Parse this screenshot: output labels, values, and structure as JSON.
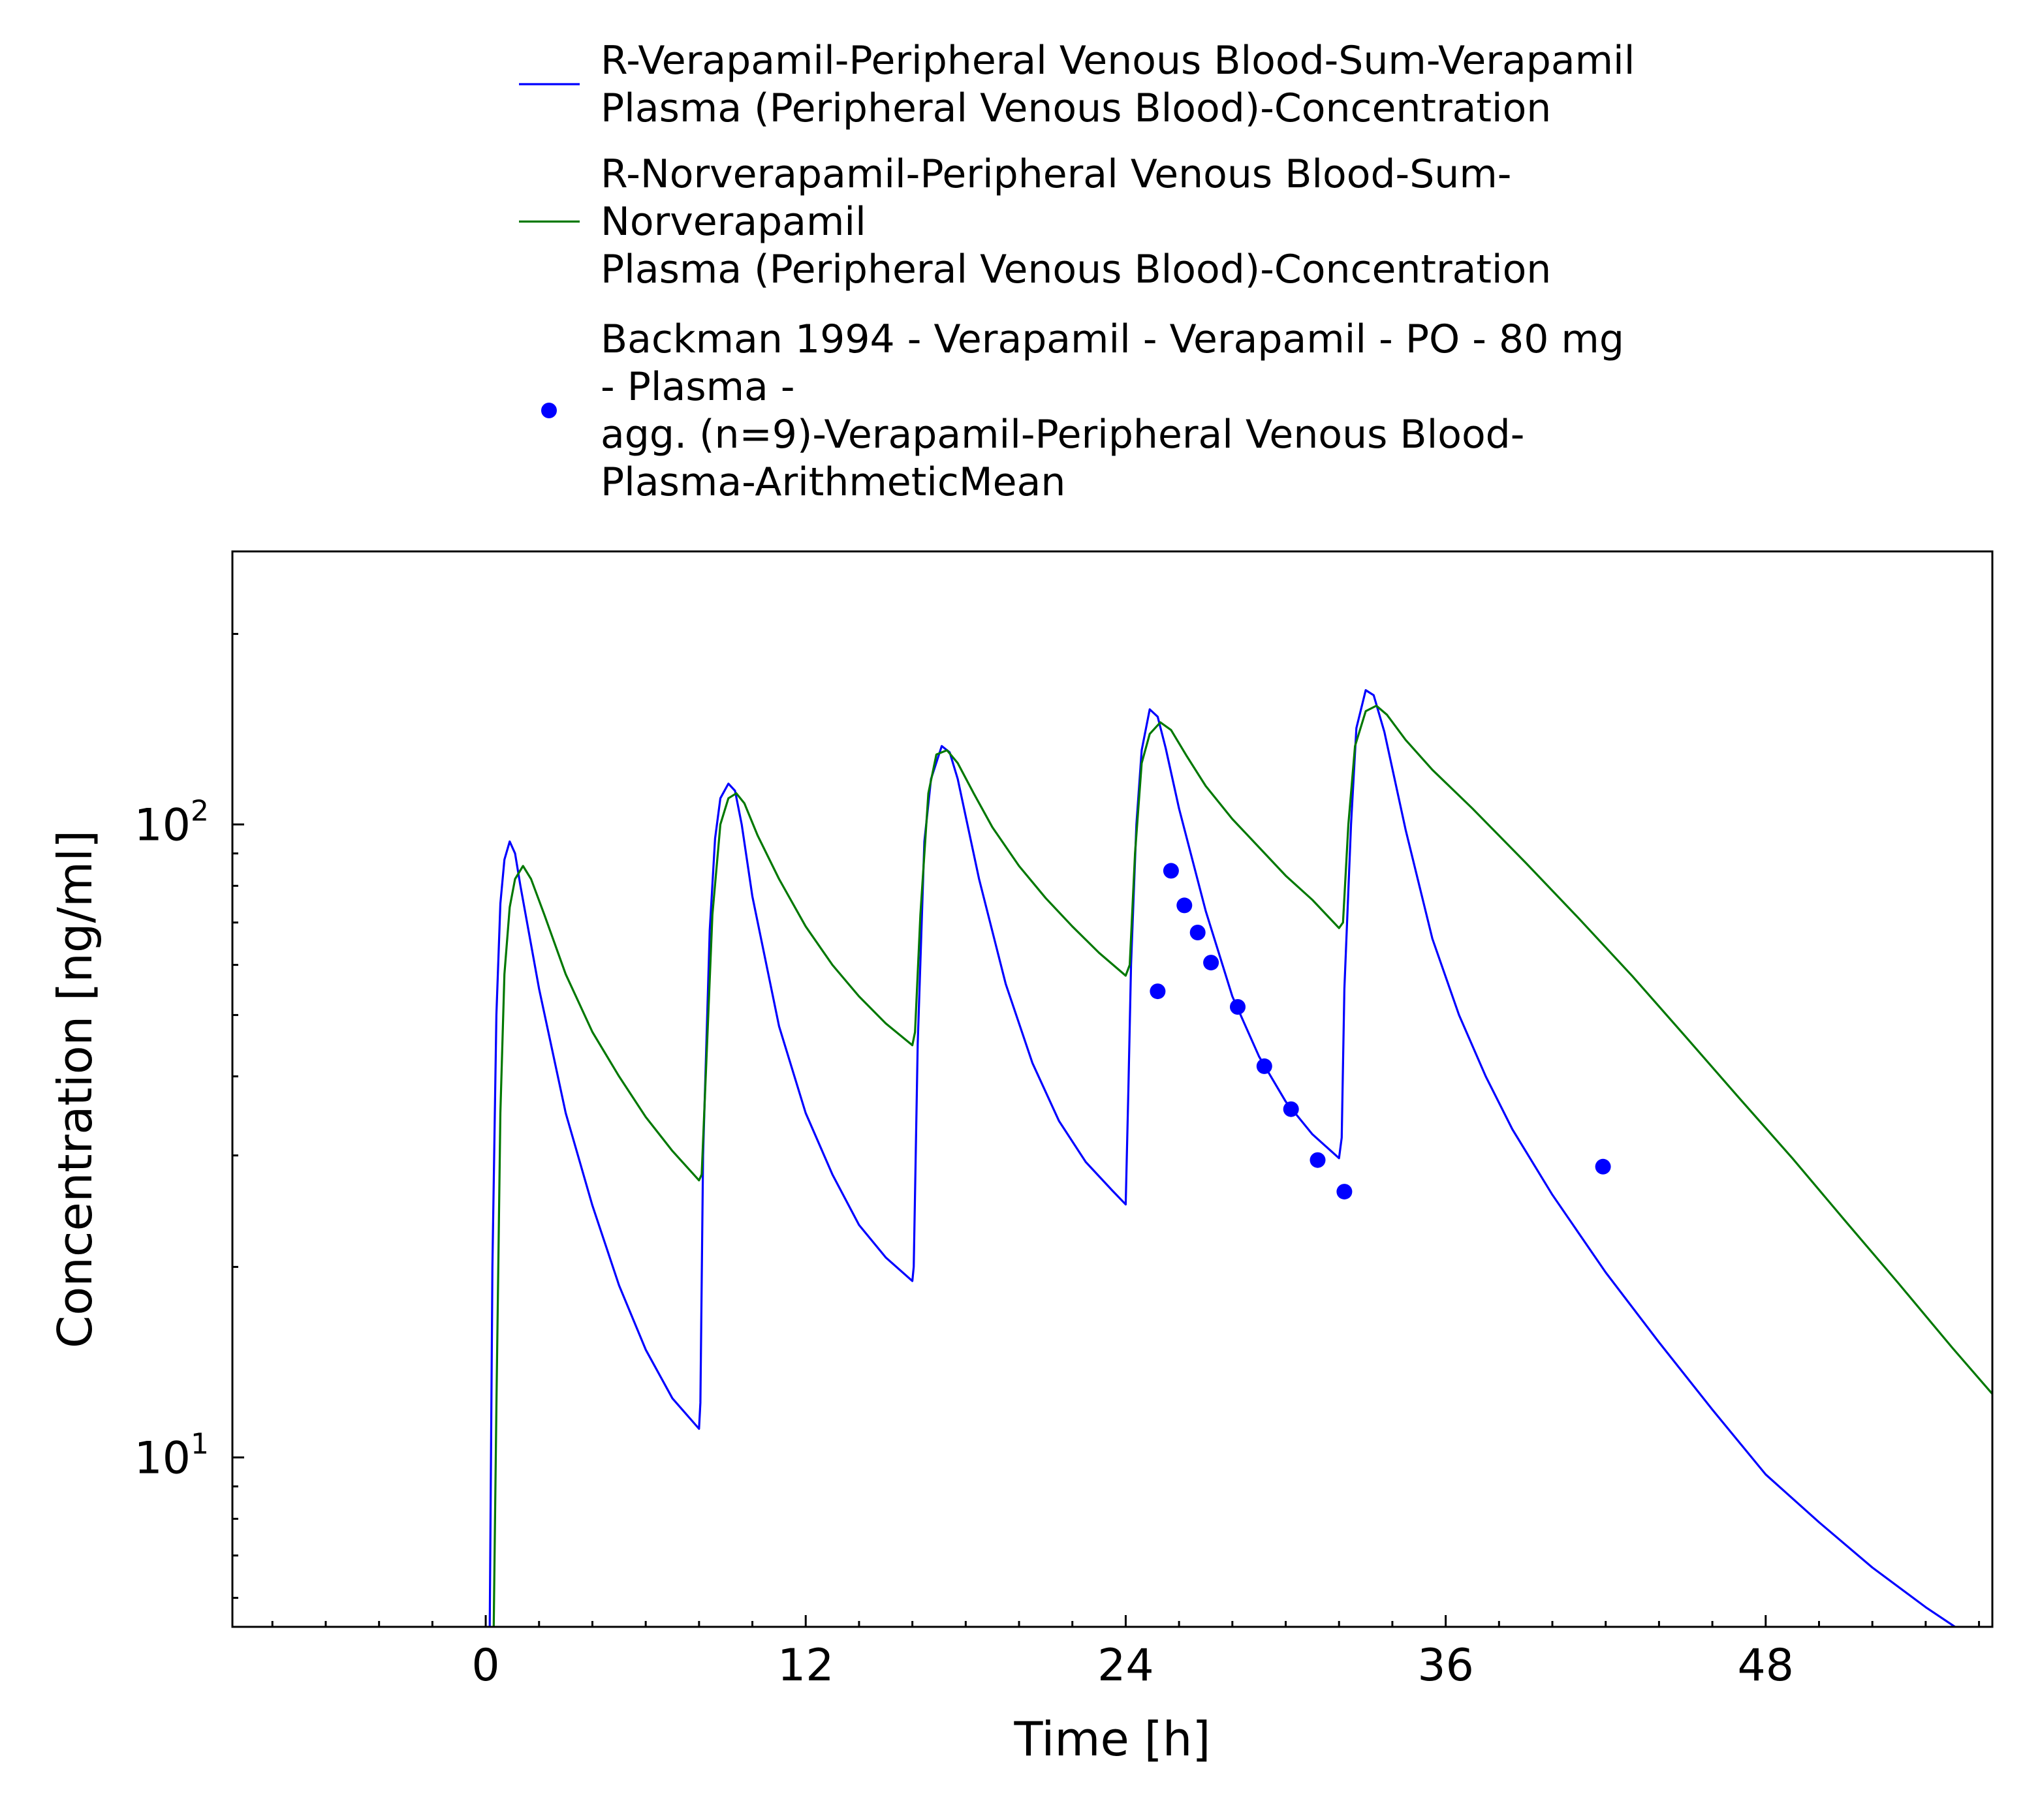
{
  "chart_data": {
    "type": "line",
    "xlabel": "Time [h]",
    "ylabel": "Concentration [ng/ml]",
    "xlim": [
      -9.5,
      56.5
    ],
    "ylim": [
      5.4,
      270
    ],
    "yscale": "log",
    "x_ticks": [
      0,
      12,
      24,
      36,
      48
    ],
    "y_ticks": [
      {
        "value": 10,
        "base": "10",
        "exp": "1"
      },
      {
        "value": 100,
        "base": "10",
        "exp": "2"
      }
    ],
    "legend": {
      "placement": "top"
    },
    "series": [
      {
        "name": "R-Verapamil-Peripheral Venous Blood-Sum-Verapamil Plasma (Peripheral Venous Blood)-Concentration",
        "legend_lines": [
          "R-Verapamil-Peripheral Venous Blood-Sum-Verapamil",
          "Plasma (Peripheral Venous Blood)-Concentration"
        ],
        "style": "line",
        "color": "#0000ff",
        "x": [
          0.15,
          0.25,
          0.4,
          0.55,
          0.7,
          0.9,
          1.1,
          1.3,
          2,
          3,
          4,
          5,
          6,
          7,
          8,
          8.05,
          8.15,
          8.4,
          8.6,
          8.8,
          9.1,
          9.35,
          9.6,
          10,
          11,
          12,
          13,
          14,
          15,
          16,
          16.05,
          16.2,
          16.45,
          16.7,
          17.1,
          17.4,
          17.7,
          18.5,
          19.5,
          20.5,
          21.5,
          22.5,
          23.5,
          24,
          24.1,
          24.2,
          24.4,
          24.6,
          24.9,
          25.2,
          25.5,
          26,
          27,
          28,
          29,
          30,
          31,
          32,
          32.1,
          32.2,
          32.45,
          32.65,
          33,
          33.3,
          33.7,
          34.5,
          35.5,
          36.5,
          37.5,
          38.5,
          40,
          42,
          44,
          46,
          48,
          50,
          52,
          54,
          55.1
        ],
        "y": [
          5.4,
          20,
          50,
          75,
          88,
          94,
          90,
          80,
          55,
          35,
          25,
          18.7,
          14.8,
          12.4,
          11.1,
          12.2,
          30,
          68,
          95,
          110,
          116,
          113,
          100,
          77,
          48,
          35,
          28,
          23.3,
          20.7,
          19,
          20,
          45,
          94,
          118,
          133,
          130,
          118,
          82,
          56,
          42,
          34,
          29.3,
          26.4,
          25.1,
          38,
          60,
          100,
          131,
          152,
          148,
          132,
          106,
          73,
          53.5,
          43,
          36.5,
          32.4,
          29.7,
          32,
          55,
          100,
          142,
          163,
          160,
          140,
          98,
          66,
          50,
          40,
          33,
          26,
          19.6,
          15.2,
          11.9,
          9.4,
          7.9,
          6.7,
          5.8,
          5.4
        ]
      },
      {
        "name": "R-Norverapamil-Peripheral Venous Blood-Sum-Norverapamil Plasma (Peripheral Venous Blood)-Concentration",
        "legend_lines": [
          "R-Norverapamil-Peripheral Venous Blood-Sum-",
          "Norverapamil",
          "Plasma (Peripheral Venous Blood)-Concentration"
        ],
        "style": "line",
        "color": "#007800",
        "x": [
          0.3,
          0.4,
          0.55,
          0.7,
          0.9,
          1.1,
          1.4,
          1.7,
          2.2,
          3,
          4,
          5,
          6,
          7,
          8,
          8.1,
          8.25,
          8.5,
          8.8,
          9.1,
          9.4,
          9.7,
          10.2,
          11,
          12,
          13,
          14,
          15,
          16,
          16.1,
          16.3,
          16.6,
          16.9,
          17.3,
          17.7,
          18.3,
          19,
          20,
          21,
          22,
          23,
          24,
          24.15,
          24.35,
          24.6,
          24.9,
          25.3,
          25.7,
          26.3,
          27,
          28,
          29,
          30,
          31,
          32,
          32.15,
          32.35,
          32.6,
          33,
          33.4,
          33.8,
          34.5,
          35.5,
          37,
          39,
          41,
          43,
          45,
          47,
          49,
          51,
          53,
          55,
          56.5
        ],
        "y": [
          5.4,
          12,
          35,
          58,
          74,
          82,
          86,
          82,
          72,
          58,
          47,
          40,
          34.5,
          30.5,
          27.4,
          28,
          40,
          72,
          100,
          110,
          112,
          108,
          96,
          82,
          69,
          60,
          53.5,
          48.5,
          44.8,
          47,
          72,
          112,
          129,
          131,
          125,
          112,
          99,
          86,
          76.5,
          69,
          62.7,
          57.7,
          60,
          90,
          125,
          139,
          145,
          141,
          128,
          115,
          102,
          92,
          83,
          76,
          68.6,
          70,
          100,
          133,
          151,
          154,
          149,
          136,
          122,
          106,
          87,
          71,
          57.6,
          46.2,
          37,
          29.7,
          23.6,
          18.8,
          14.9,
          12.6
        ]
      },
      {
        "name": "Backman 1994 - Verapamil - Verapamil - PO - 80 mg - Plasma - agg. (n=9)-Verapamil-Peripheral Venous Blood-Plasma-ArithmeticMean",
        "legend_lines": [
          "Backman 1994 - Verapamil - Verapamil - PO - 80 mg",
          "- Plasma -",
          "agg. (n=9)-Verapamil-Peripheral Venous Blood-",
          "Plasma-ArithmeticMean"
        ],
        "style": "marker",
        "color": "#0000ff",
        "x": [
          25.2,
          25.7,
          26.2,
          26.7,
          27.2,
          28.2,
          29.2,
          30.2,
          31.2,
          32.2,
          41.9
        ],
        "y": [
          54.5,
          84.5,
          74.5,
          67.5,
          60.5,
          51.5,
          41.5,
          35.5,
          29.5,
          26.3,
          28.8
        ]
      }
    ]
  }
}
